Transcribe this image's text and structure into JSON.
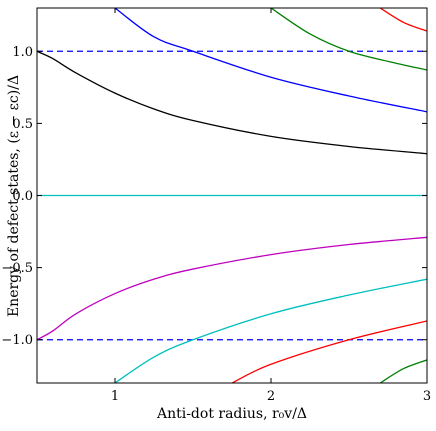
{
  "chart_data": {
    "type": "line",
    "xlabel": "Anti-dot radius, r₀v/Δ",
    "ylabel": "Energy of defect states, (ε − εc)/Δ",
    "xlim": [
      0.5,
      3.0
    ],
    "ylim": [
      -1.3,
      1.3
    ],
    "x_ticks": [
      1,
      2,
      3
    ],
    "x_tick_labels": [
      "1",
      "2",
      "3"
    ],
    "y_ticks": [
      -1.0,
      -0.5,
      0.0,
      0.5,
      1.0
    ],
    "y_tick_labels": [
      "−1.0",
      "−0.5",
      "0.0",
      "0.5",
      "1.0"
    ],
    "grid": false,
    "reference_lines": [
      {
        "y": 1.0,
        "style": "dashed",
        "color": "#0000ff"
      },
      {
        "y": -1.0,
        "style": "dashed",
        "color": "#0000ff"
      }
    ],
    "series": [
      {
        "color": "#000000",
        "x": [
          0.5,
          0.6,
          0.75,
          1.0,
          1.25,
          1.5,
          2.0,
          2.5,
          3.0
        ],
        "y": [
          1.0,
          0.95,
          0.85,
          0.71,
          0.6,
          0.52,
          0.41,
          0.34,
          0.29
        ]
      },
      {
        "color": "#00bfbf",
        "x": [
          0.5,
          3.0
        ],
        "y": [
          0.0,
          0.0
        ]
      },
      {
        "color": "#bf00bf",
        "x": [
          0.5,
          0.6,
          0.75,
          1.0,
          1.25,
          1.5,
          2.0,
          2.5,
          3.0
        ],
        "y": [
          -1.0,
          -0.94,
          -0.82,
          -0.68,
          -0.58,
          -0.51,
          -0.41,
          -0.34,
          -0.29
        ]
      },
      {
        "color": "#0000ff",
        "x": [
          1.0,
          1.25,
          1.5,
          2.0,
          2.5,
          3.0
        ],
        "y": [
          1.3,
          1.1,
          1.0,
          0.82,
          0.69,
          0.58
        ]
      },
      {
        "color": "#00bfbf",
        "x": [
          1.0,
          1.25,
          1.5,
          2.0,
          2.5,
          3.0
        ],
        "y": [
          -1.3,
          -1.12,
          -1.0,
          -0.82,
          -0.69,
          -0.58
        ]
      },
      {
        "color": "#008000",
        "x": [
          2.0,
          2.25,
          2.5,
          2.75,
          3.0
        ],
        "y": [
          1.3,
          1.12,
          1.0,
          0.93,
          0.87
        ]
      },
      {
        "color": "#ff0000",
        "x": [
          1.75,
          2.0,
          2.5,
          3.0
        ],
        "y": [
          -1.3,
          -1.17,
          -1.0,
          -0.87
        ]
      },
      {
        "color": "#ff0000",
        "x": [
          2.7,
          2.85,
          3.0
        ],
        "y": [
          1.3,
          1.2,
          1.14
        ]
      },
      {
        "color": "#008000",
        "x": [
          2.7,
          2.85,
          3.0
        ],
        "y": [
          -1.3,
          -1.2,
          -1.14
        ]
      }
    ]
  }
}
